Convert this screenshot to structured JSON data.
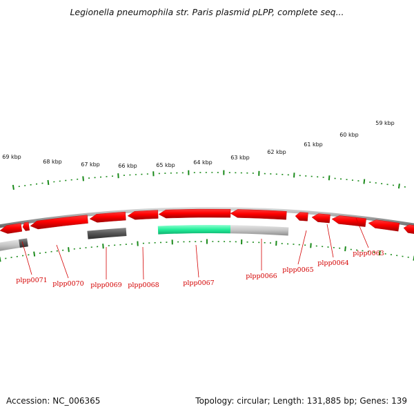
{
  "title": "Legionella pneumophila str. Paris plasmid pLPP, complete seq...",
  "footer": {
    "accession": "Accession: NC_006365",
    "summary": "Topology: circular; Length: 131,885 bp; Genes: 139"
  },
  "kbp_ticks": [
    "69 kbp",
    "68 kbp",
    "67 kbp",
    "66 kbp",
    "65 kbp",
    "64 kbp",
    "63 kbp",
    "62 kbp",
    "61 kbp",
    "60 kbp",
    "59 kbp"
  ],
  "gene_labels": [
    "plpp0071",
    "plpp0070",
    "plpp0069",
    "plpp0068",
    "plpp0067",
    "plpp0066",
    "plpp0065",
    "plpp0064",
    "plpp0063"
  ],
  "colors": {
    "gene_red": "#ee0000",
    "gene_red_dark": "#b00000",
    "tick_green": "#1a8a1a",
    "backbone_gray": "#8c8c8c",
    "highlight_green": "#22ee99",
    "feature_gray_light": "#bdbdbd",
    "feature_gray_dark": "#555555",
    "label_red": "#d40000"
  }
}
